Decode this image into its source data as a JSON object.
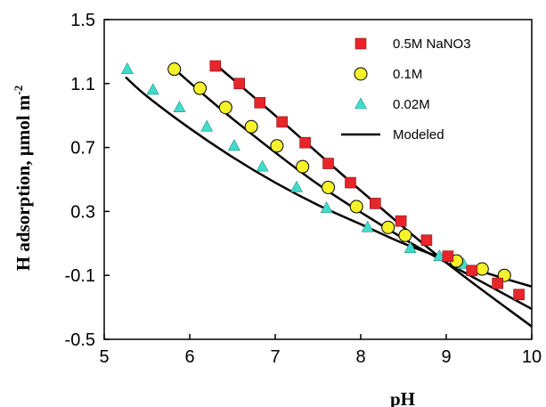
{
  "chart_data": {
    "type": "scatter",
    "xlabel": "pH",
    "ylabel": "H adsorption, µmol m",
    "ylabel_superscript": "-2",
    "xlim": [
      5,
      10
    ],
    "ylim": [
      -0.5,
      1.5
    ],
    "xticks": [
      "5",
      "6",
      "7",
      "8",
      "9",
      "10"
    ],
    "yticks": [
      "1.5",
      "1.1",
      "0.7",
      "0.3",
      "-0.1",
      "-0.5"
    ],
    "grid": false,
    "legend_position": "top-right",
    "series": [
      {
        "name": "0.5M NaNO3",
        "marker": "square",
        "color": "#e8252a",
        "x": [
          6.3,
          6.58,
          6.82,
          7.08,
          7.35,
          7.62,
          7.88,
          8.17,
          8.47,
          8.77,
          9.02,
          9.3,
          9.6,
          9.85
        ],
        "y": [
          1.21,
          1.1,
          0.98,
          0.86,
          0.73,
          0.6,
          0.48,
          0.35,
          0.24,
          0.12,
          0.02,
          -0.07,
          -0.15,
          -0.22
        ]
      },
      {
        "name": "0.1M",
        "marker": "circle",
        "color": "#f6f22a",
        "x": [
          5.82,
          6.12,
          6.42,
          6.72,
          7.02,
          7.32,
          7.62,
          7.95,
          8.32,
          8.52,
          9.12,
          9.42,
          9.68
        ],
        "y": [
          1.19,
          1.07,
          0.95,
          0.83,
          0.71,
          0.58,
          0.45,
          0.33,
          0.2,
          0.15,
          -0.01,
          -0.06,
          -0.1
        ]
      },
      {
        "name": "0.02M",
        "marker": "triangle",
        "color": "#40dccb",
        "x": [
          5.27,
          5.57,
          5.88,
          6.2,
          6.52,
          6.85,
          7.25,
          7.6,
          8.08,
          8.58,
          8.92,
          9.2,
          9.68
        ],
        "y": [
          1.19,
          1.06,
          0.95,
          0.83,
          0.71,
          0.58,
          0.45,
          0.32,
          0.2,
          0.07,
          0.02,
          -0.03,
          -0.1
        ]
      },
      {
        "name": "Modeled",
        "marker": "line",
        "color": "#000000",
        "lines": [
          {
            "x": [
              6.3,
              7.0,
              8.0,
              9.0,
              10.0
            ],
            "y": [
              1.22,
              0.9,
              0.43,
              -0.02,
              -0.42
            ]
          },
          {
            "x": [
              5.8,
              6.5,
              7.5,
              8.5,
              9.0,
              10.0
            ],
            "y": [
              1.2,
              0.88,
              0.47,
              0.13,
              -0.02,
              -0.31
            ]
          },
          {
            "x": [
              5.25,
              5.5,
              6.0,
              6.5,
              7.0,
              7.5,
              8.0,
              8.5,
              9.0,
              9.5,
              10.0
            ],
            "y": [
              1.14,
              1.02,
              0.82,
              0.64,
              0.48,
              0.34,
              0.22,
              0.1,
              0.0,
              -0.09,
              -0.17
            ]
          }
        ]
      }
    ]
  }
}
